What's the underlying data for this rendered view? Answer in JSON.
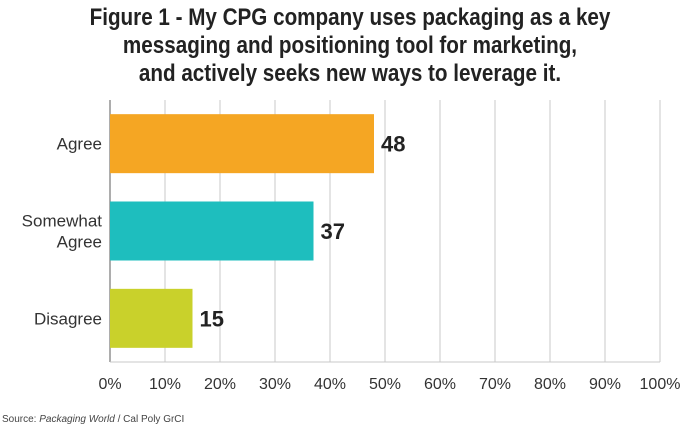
{
  "chart_data": {
    "type": "bar",
    "orientation": "horizontal",
    "title_lines": [
      "Figure 1 - My CPG company uses packaging as a key",
      "messaging and positioning tool for marketing,",
      "and actively seeks new ways to leverage it."
    ],
    "categories": [
      {
        "lines": [
          "Agree"
        ]
      },
      {
        "lines": [
          "Somewhat",
          "Agree"
        ]
      },
      {
        "lines": [
          "Disagree"
        ]
      }
    ],
    "values": [
      48,
      37,
      15
    ],
    "data_labels": [
      "48",
      "37",
      "15"
    ],
    "colors": [
      "#F5A623",
      "#1EBEBE",
      "#C9D12B"
    ],
    "xlim": [
      0,
      100
    ],
    "xticks": [
      0,
      10,
      20,
      30,
      40,
      50,
      60,
      70,
      80,
      90,
      100
    ],
    "xtick_labels": [
      "0%",
      "10%",
      "20%",
      "30%",
      "40%",
      "50%",
      "60%",
      "70%",
      "80%",
      "90%",
      "100%"
    ],
    "grid": true,
    "xlabel": "",
    "ylabel": ""
  },
  "source": {
    "prefix": "Source: ",
    "publication": "Packaging World",
    "suffix": " / Cal Poly GrCI"
  }
}
